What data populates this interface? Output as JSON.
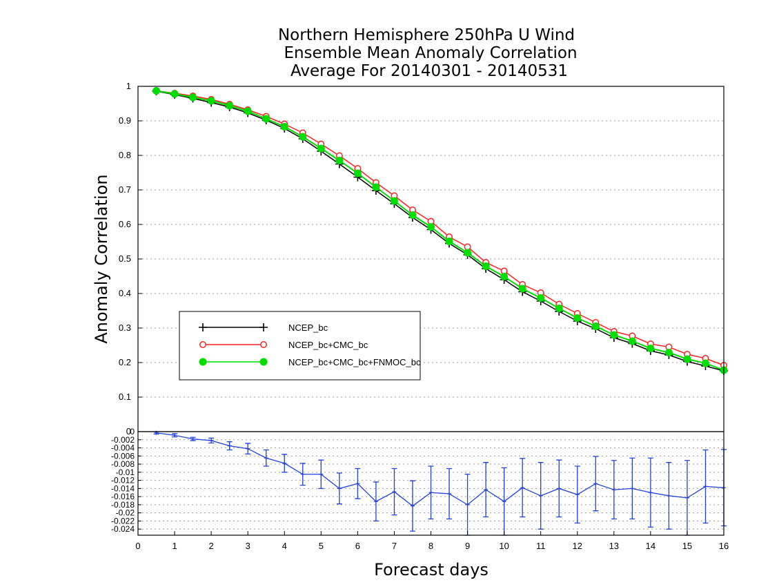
{
  "chart_data": [
    {
      "type": "line",
      "title_lines": [
        "Northern Hemisphere 250hPa U Wind",
        "Ensemble Mean Anomaly Correlation",
        "Average For 20140301 - 20140531"
      ],
      "xlabel": "Forecast days",
      "ylabel": "Anomaly Correlation",
      "xlim": [
        0,
        16
      ],
      "ylim": [
        0,
        1
      ],
      "x_ticks": [
        "0",
        "1",
        "2",
        "3",
        "4",
        "5",
        "6",
        "7",
        "8",
        "9",
        "10",
        "11",
        "12",
        "13",
        "14",
        "15",
        "16"
      ],
      "y_ticks": [
        "0",
        "0.1",
        "0.2",
        "0.3",
        "0.4",
        "0.5",
        "0.6",
        "0.7",
        "0.8",
        "0.9",
        "1"
      ],
      "grid": true,
      "legend_position": "lower-left",
      "x": [
        0.5,
        1,
        1.5,
        2,
        2.5,
        3,
        3.5,
        4,
        4.5,
        5,
        5.5,
        6,
        6.5,
        7,
        7.5,
        8,
        8.5,
        9,
        9.5,
        10,
        10.5,
        11,
        11.5,
        12,
        12.5,
        13,
        13.5,
        14,
        14.5,
        15,
        15.5,
        16
      ],
      "series": [
        {
          "name": "NCEP_bc",
          "color": "#000000",
          "marker": "plus",
          "values": [
            0.986,
            0.976,
            0.965,
            0.953,
            0.94,
            0.923,
            0.902,
            0.878,
            0.848,
            0.812,
            0.775,
            0.737,
            0.698,
            0.66,
            0.62,
            0.585,
            0.545,
            0.512,
            0.472,
            0.44,
            0.405,
            0.378,
            0.348,
            0.32,
            0.298,
            0.272,
            0.255,
            0.234,
            0.222,
            0.203,
            0.19,
            0.176
          ]
        },
        {
          "name": "NCEP_bc+CMC_bc",
          "color": "#ff2020",
          "marker": "open-circle",
          "values": [
            0.987,
            0.98,
            0.972,
            0.962,
            0.948,
            0.932,
            0.913,
            0.891,
            0.865,
            0.833,
            0.799,
            0.762,
            0.721,
            0.683,
            0.642,
            0.609,
            0.564,
            0.535,
            0.49,
            0.465,
            0.426,
            0.402,
            0.369,
            0.342,
            0.316,
            0.29,
            0.277,
            0.254,
            0.245,
            0.224,
            0.212,
            0.192
          ]
        },
        {
          "name": "NCEP_bc+CMC_bc+FNMOC_bc",
          "color": "#00dd00",
          "marker": "filled-circle",
          "values": [
            0.987,
            0.978,
            0.968,
            0.958,
            0.944,
            0.928,
            0.906,
            0.883,
            0.854,
            0.82,
            0.785,
            0.748,
            0.708,
            0.668,
            0.627,
            0.593,
            0.551,
            0.518,
            0.479,
            0.449,
            0.414,
            0.387,
            0.357,
            0.329,
            0.305,
            0.28,
            0.262,
            0.241,
            0.229,
            0.21,
            0.198,
            0.178
          ]
        }
      ]
    },
    {
      "type": "line",
      "xlim": [
        0,
        16
      ],
      "ylim": [
        -0.0255,
        0
      ],
      "y_ticks": [
        "0",
        "-0.002",
        "-0.004",
        "-0.006",
        "-0.008",
        "-0.01",
        "-0.012",
        "-0.014",
        "-0.016",
        "-0.018",
        "-0.02",
        "-0.022",
        "-0.024"
      ],
      "grid": true,
      "series": [
        {
          "color": "#2040e0",
          "error_bars": true,
          "values": [
            -0.0003,
            -0.0009,
            -0.0018,
            -0.0022,
            -0.0035,
            -0.0042,
            -0.0065,
            -0.0078,
            -0.0105,
            -0.0105,
            -0.014,
            -0.0128,
            -0.0172,
            -0.0148,
            -0.0183,
            -0.015,
            -0.0153,
            -0.018,
            -0.0143,
            -0.0172,
            -0.0138,
            -0.0158,
            -0.014,
            -0.0155,
            -0.0128,
            -0.0143,
            -0.014,
            -0.015,
            -0.0158,
            -0.0163,
            -0.0135,
            -0.0138
          ],
          "err_low": [
            -0.0006,
            -0.0013,
            -0.0022,
            -0.0028,
            -0.0045,
            -0.0055,
            -0.0085,
            -0.01,
            -0.0132,
            -0.014,
            -0.0178,
            -0.0165,
            -0.022,
            -0.0205,
            -0.0245,
            -0.0215,
            -0.0215,
            -0.0255,
            -0.021,
            -0.0255,
            -0.021,
            -0.024,
            -0.021,
            -0.0225,
            -0.0195,
            -0.0215,
            -0.0215,
            -0.0235,
            -0.024,
            -0.0255,
            -0.0225,
            -0.0232
          ],
          "err_high": [
            0.0,
            -0.0005,
            -0.0014,
            -0.0016,
            -0.0025,
            -0.0029,
            -0.0045,
            -0.0056,
            -0.0078,
            -0.007,
            -0.0102,
            -0.0091,
            -0.0124,
            -0.0091,
            -0.0121,
            -0.0085,
            -0.0091,
            -0.0105,
            -0.0076,
            -0.0089,
            -0.0066,
            -0.0076,
            -0.007,
            -0.0085,
            -0.0061,
            -0.0071,
            -0.0065,
            -0.0065,
            -0.0076,
            -0.0071,
            -0.0045,
            -0.0044
          ]
        }
      ]
    }
  ]
}
